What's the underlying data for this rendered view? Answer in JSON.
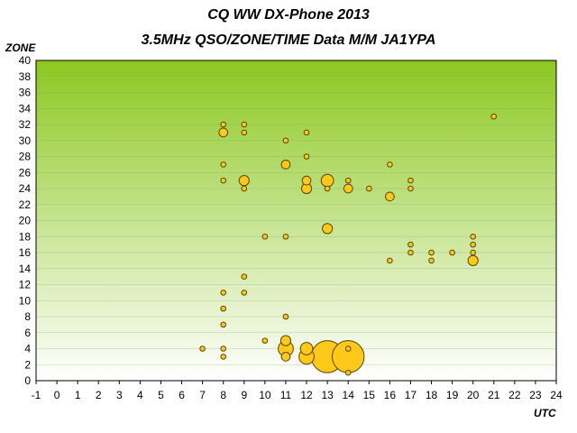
{
  "title": "CQ WW DX-Phone 2013",
  "subtitle": "3.5MHz QSO/ZONE/TIME Data M/M JA1YPA",
  "chart_data": {
    "type": "scatter",
    "title": "CQ WW DX-Phone 2013",
    "subtitle": "3.5MHz QSO/ZONE/TIME Data M/M JA1YPA",
    "xlabel": "UTC",
    "ylabel": "ZONE",
    "xlim": [
      -1,
      24
    ],
    "ylim": [
      0,
      40
    ],
    "x_ticks": [
      -1,
      0,
      1,
      2,
      3,
      4,
      5,
      6,
      7,
      8,
      9,
      10,
      11,
      12,
      13,
      14,
      15,
      16,
      17,
      18,
      19,
      20,
      21,
      22,
      23,
      24
    ],
    "y_ticks": [
      0,
      2,
      4,
      6,
      8,
      10,
      12,
      14,
      16,
      18,
      20,
      22,
      24,
      26,
      28,
      30,
      32,
      34,
      36,
      38,
      40
    ],
    "grid": true,
    "legend": "none",
    "colors": {
      "bubble_fill": "#FFC91A",
      "bubble_stroke": "#5a4300",
      "gradient_top": "#8CC820",
      "gradient_bottom": "#FFFFFF"
    },
    "note": "bubble size shows relative QSO count",
    "points": [
      {
        "x": 7,
        "y": 4,
        "s": 1
      },
      {
        "x": 8,
        "y": 32,
        "s": 1
      },
      {
        "x": 8,
        "y": 31,
        "s": 3
      },
      {
        "x": 8,
        "y": 27,
        "s": 1
      },
      {
        "x": 8,
        "y": 25,
        "s": 1
      },
      {
        "x": 8,
        "y": 11,
        "s": 1
      },
      {
        "x": 8,
        "y": 9,
        "s": 1
      },
      {
        "x": 8,
        "y": 7,
        "s": 1
      },
      {
        "x": 8,
        "y": 4,
        "s": 1
      },
      {
        "x": 8,
        "y": 3,
        "s": 1
      },
      {
        "x": 9,
        "y": 32,
        "s": 1
      },
      {
        "x": 9,
        "y": 31,
        "s": 1
      },
      {
        "x": 9,
        "y": 25,
        "s": 4
      },
      {
        "x": 9,
        "y": 24,
        "s": 1
      },
      {
        "x": 9,
        "y": 13,
        "s": 1
      },
      {
        "x": 9,
        "y": 11,
        "s": 1
      },
      {
        "x": 10,
        "y": 18,
        "s": 1
      },
      {
        "x": 10,
        "y": 5,
        "s": 1
      },
      {
        "x": 11,
        "y": 30,
        "s": 1
      },
      {
        "x": 11,
        "y": 27,
        "s": 3
      },
      {
        "x": 11,
        "y": 18,
        "s": 1
      },
      {
        "x": 11,
        "y": 8,
        "s": 1
      },
      {
        "x": 11,
        "y": 5,
        "s": 4
      },
      {
        "x": 11,
        "y": 4,
        "s": 9
      },
      {
        "x": 11,
        "y": 3,
        "s": 3
      },
      {
        "x": 12,
        "y": 31,
        "s": 1
      },
      {
        "x": 12,
        "y": 28,
        "s": 1
      },
      {
        "x": 12,
        "y": 25,
        "s": 3
      },
      {
        "x": 12,
        "y": 24,
        "s": 4
      },
      {
        "x": 12,
        "y": 4,
        "s": 6
      },
      {
        "x": 12,
        "y": 3,
        "s": 9
      },
      {
        "x": 13,
        "y": 25,
        "s": 6
      },
      {
        "x": 13,
        "y": 24,
        "s": 1
      },
      {
        "x": 13,
        "y": 19,
        "s": 4
      },
      {
        "x": 13,
        "y": 3,
        "s": 40
      },
      {
        "x": 14,
        "y": 25,
        "s": 1
      },
      {
        "x": 14,
        "y": 24,
        "s": 3
      },
      {
        "x": 14,
        "y": 4,
        "s": 1
      },
      {
        "x": 14,
        "y": 3,
        "s": 40
      },
      {
        "x": 14,
        "y": 1,
        "s": 1
      },
      {
        "x": 15,
        "y": 24,
        "s": 1
      },
      {
        "x": 16,
        "y": 27,
        "s": 1
      },
      {
        "x": 16,
        "y": 23,
        "s": 3
      },
      {
        "x": 16,
        "y": 15,
        "s": 1
      },
      {
        "x": 17,
        "y": 25,
        "s": 1
      },
      {
        "x": 17,
        "y": 24,
        "s": 1
      },
      {
        "x": 17,
        "y": 17,
        "s": 1
      },
      {
        "x": 17,
        "y": 16,
        "s": 1
      },
      {
        "x": 18,
        "y": 16,
        "s": 1
      },
      {
        "x": 18,
        "y": 15,
        "s": 1
      },
      {
        "x": 19,
        "y": 16,
        "s": 1
      },
      {
        "x": 20,
        "y": 18,
        "s": 1
      },
      {
        "x": 20,
        "y": 17,
        "s": 1
      },
      {
        "x": 20,
        "y": 16,
        "s": 1
      },
      {
        "x": 20,
        "y": 15,
        "s": 4
      },
      {
        "x": 21,
        "y": 33,
        "s": 1
      }
    ]
  }
}
